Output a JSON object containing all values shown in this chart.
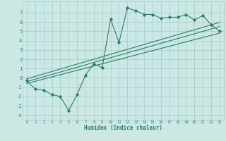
{
  "x_data": [
    0,
    1,
    2,
    3,
    4,
    5,
    6,
    7,
    8,
    9,
    10,
    11,
    12,
    13,
    14,
    15,
    16,
    17,
    18,
    19,
    20,
    21,
    22,
    23
  ],
  "y_main": [
    -0.3,
    -1.2,
    -1.3,
    -1.8,
    -2.0,
    -3.5,
    -1.8,
    0.3,
    1.5,
    1.1,
    6.3,
    3.8,
    7.5,
    7.2,
    6.8,
    6.8,
    6.4,
    6.5,
    6.5,
    6.8,
    6.2,
    6.7,
    5.7,
    5.0
  ],
  "line1_x": [
    0,
    23
  ],
  "line1_y": [
    -0.6,
    4.8
  ],
  "line2_x": [
    0,
    23
  ],
  "line2_y": [
    -0.4,
    5.5
  ],
  "line3_x": [
    0,
    23
  ],
  "line3_y": [
    -0.1,
    5.95
  ],
  "xlim": [
    -0.5,
    23.5
  ],
  "ylim": [
    -4.5,
    8.2
  ],
  "yticks": [
    -4,
    -3,
    -2,
    -1,
    0,
    1,
    2,
    3,
    4,
    5,
    6,
    7
  ],
  "xticks": [
    0,
    1,
    2,
    3,
    4,
    5,
    6,
    7,
    8,
    9,
    10,
    11,
    12,
    13,
    14,
    15,
    16,
    17,
    18,
    19,
    20,
    21,
    22,
    23
  ],
  "xlabel": "Humidex (Indice chaleur)",
  "line_color": "#2e7d6b",
  "bg_color": "#cce8e4",
  "grid_color": "#a0ccc8"
}
